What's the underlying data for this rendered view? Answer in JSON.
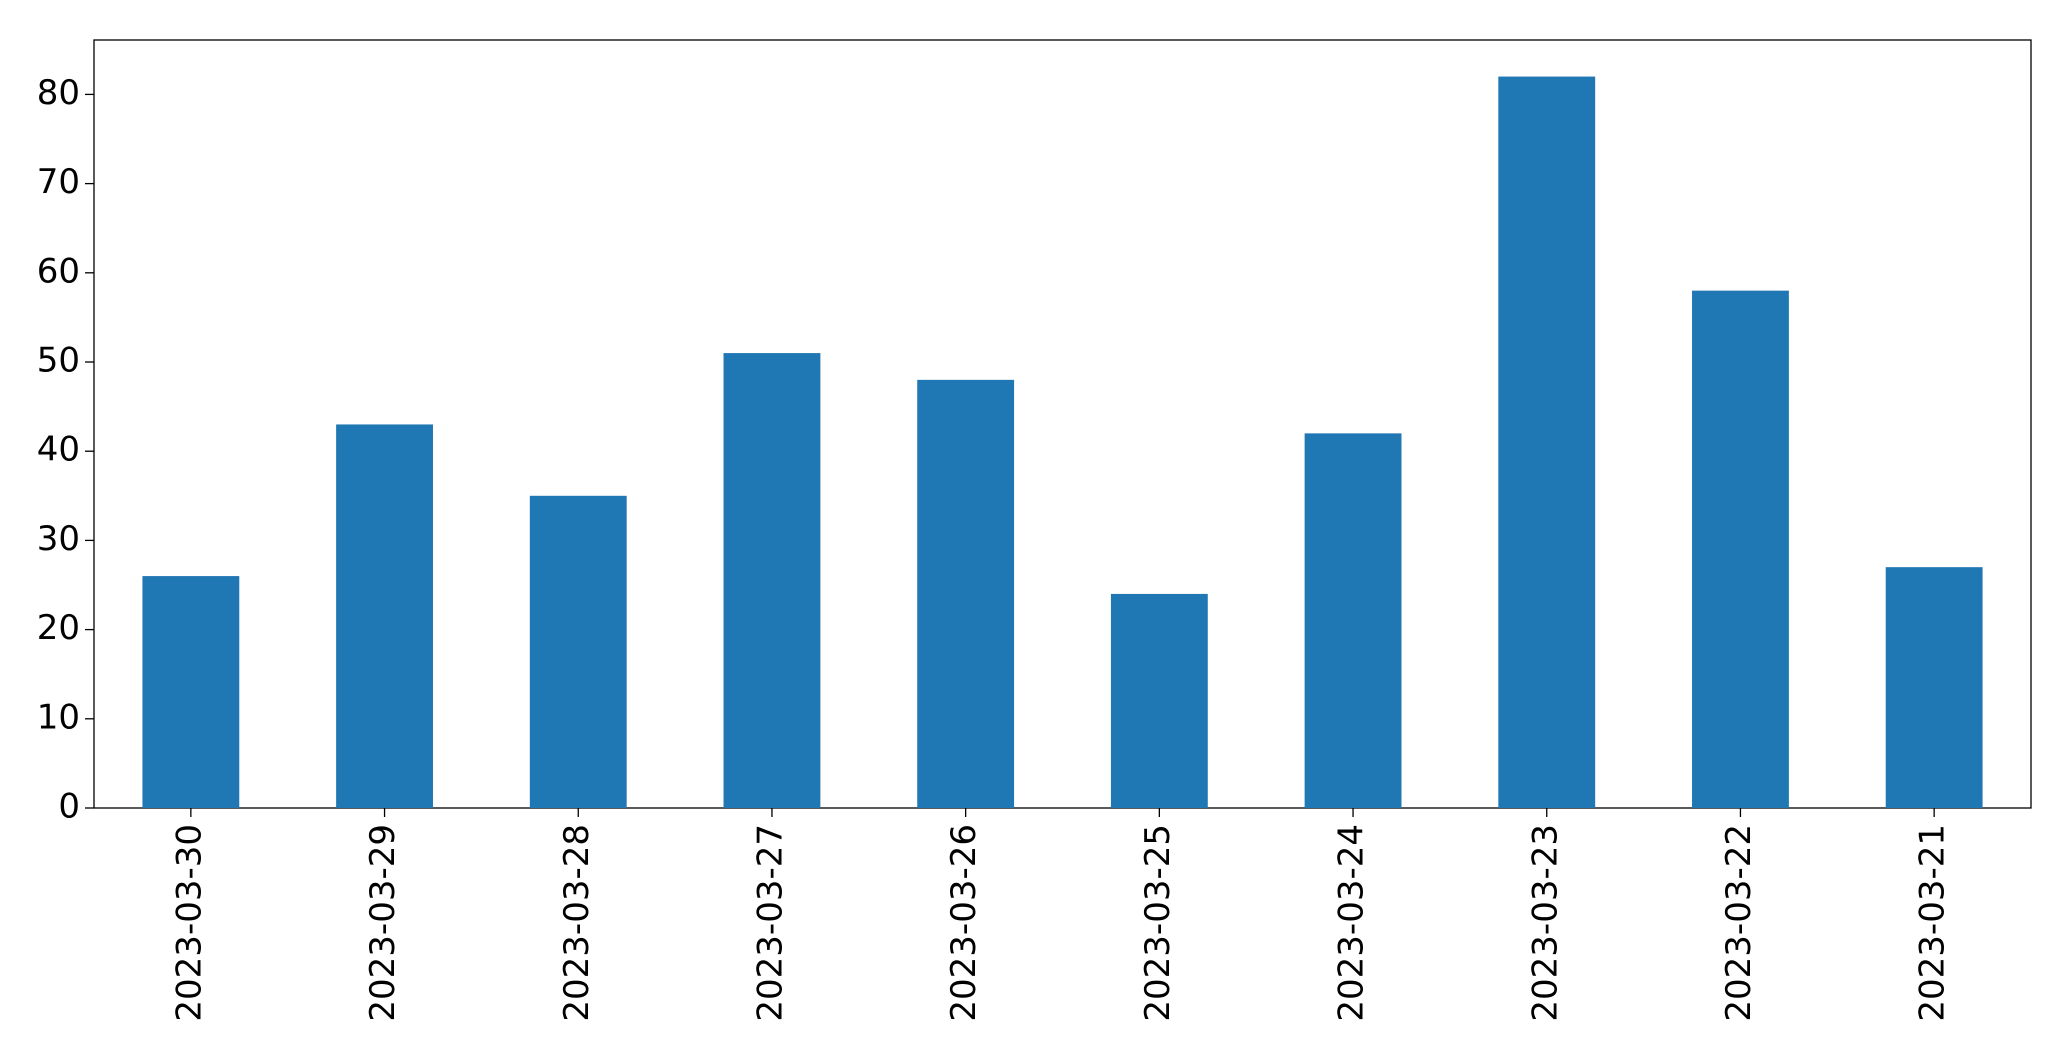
{
  "chart_data": {
    "type": "bar",
    "categories": [
      "2023-03-30",
      "2023-03-29",
      "2023-03-28",
      "2023-03-27",
      "2023-03-26",
      "2023-03-25",
      "2023-03-24",
      "2023-03-23",
      "2023-03-22",
      "2023-03-21"
    ],
    "values": [
      26,
      43,
      35,
      51,
      48,
      24,
      42,
      82,
      58,
      27
    ],
    "color": "#1f77b4",
    "ylim": [
      0,
      86.1
    ],
    "yticks": [
      0,
      10,
      20,
      30,
      40,
      50,
      60,
      70,
      80
    ],
    "grid": false
  }
}
